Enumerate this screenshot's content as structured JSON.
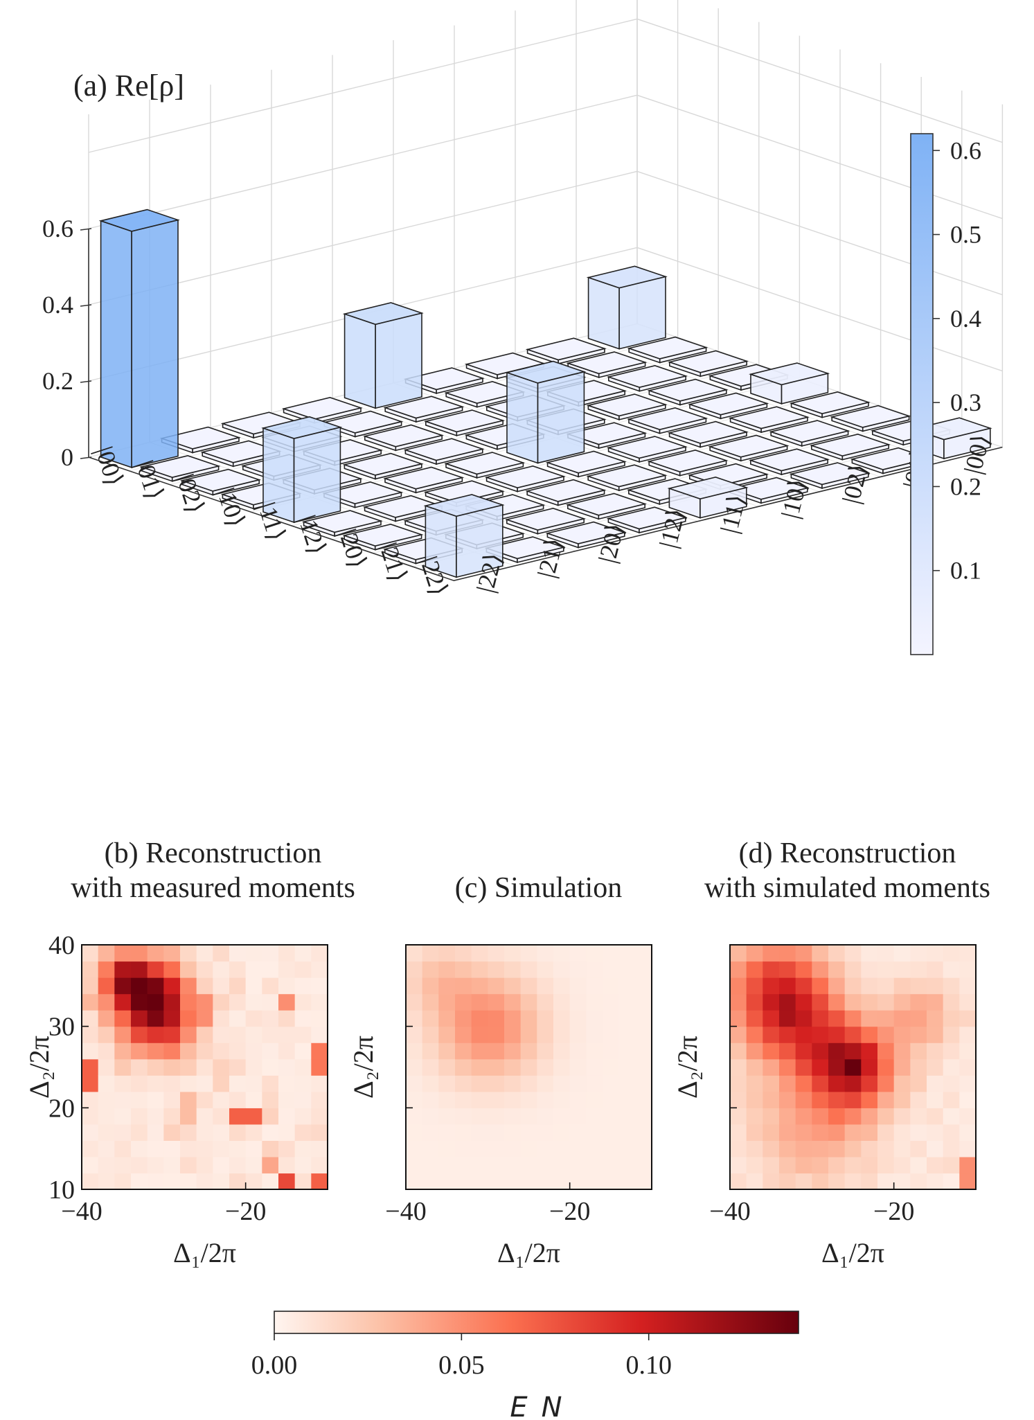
{
  "chart_data": [
    {
      "panel": "(a)",
      "type": "bar3d",
      "title": "(a) Re[ρ]",
      "states": [
        "|00⟩",
        "|01⟩",
        "|02⟩",
        "|10⟩",
        "|11⟩",
        "|12⟩",
        "|20⟩",
        "|21⟩",
        "|22⟩"
      ],
      "zlim": [
        0,
        0.6
      ],
      "zticks": [
        "0",
        "0.2",
        "0.4",
        "0.6"
      ],
      "colorbar": {
        "range": [
          0,
          0.62
        ],
        "ticks": [
          "0.1",
          "0.2",
          "0.3",
          "0.4",
          "0.5",
          "0.6"
        ],
        "colors": [
          "#f4f4ff",
          "#7fb2f5"
        ]
      },
      "values": [
        [
          0.62,
          0.01,
          0.01,
          0.01,
          0.22,
          0.01,
          0.01,
          0.01,
          0.16
        ],
        [
          0.01,
          0.01,
          0.01,
          0.01,
          0.01,
          0.01,
          0.01,
          0.01,
          0.01
        ],
        [
          0.01,
          0.01,
          0.01,
          0.01,
          0.01,
          0.01,
          0.01,
          0.01,
          0.01
        ],
        [
          0.01,
          0.01,
          0.01,
          0.01,
          0.01,
          0.01,
          0.01,
          0.01,
          0.01
        ],
        [
          0.22,
          0.01,
          0.01,
          0.01,
          0.21,
          0.01,
          0.01,
          0.01,
          0.05
        ],
        [
          0.01,
          0.01,
          0.01,
          0.01,
          0.01,
          0.01,
          0.01,
          0.01,
          0.01
        ],
        [
          0.01,
          0.01,
          0.01,
          0.01,
          0.01,
          0.01,
          0.01,
          0.01,
          0.01
        ],
        [
          0.01,
          0.01,
          0.01,
          0.01,
          0.01,
          0.01,
          0.01,
          0.01,
          0.01
        ],
        [
          0.16,
          0.01,
          0.01,
          0.01,
          0.05,
          0.01,
          0.01,
          0.01,
          0.05
        ]
      ]
    },
    {
      "panel": "(b)",
      "type": "heatmap",
      "title": [
        "(b) Reconstruction",
        "with measured moments"
      ],
      "xlabel": "Δ₁/2π",
      "ylabel": "Δ₂/2π",
      "xlim": [
        -40,
        -10
      ],
      "ylim": [
        10,
        40
      ],
      "xticks": [
        "−40",
        "−20"
      ],
      "yticks": [
        "10",
        "20",
        "30",
        "40"
      ],
      "grid_size": 15,
      "peaks": [
        {
          "x": -32,
          "y": 34,
          "w": 3.2,
          "v": 0.11
        },
        {
          "x": -30,
          "y": 30,
          "w": 3,
          "v": 0.06
        },
        {
          "x": -35,
          "y": 36,
          "w": 2,
          "v": 0.06
        }
      ],
      "hotspots": [
        {
          "x": -39,
          "y": 24,
          "v": 0.07
        },
        {
          "x": -11,
          "y": 26,
          "v": 0.06
        },
        {
          "x": -20,
          "y": 19,
          "v": 0.07
        },
        {
          "x": -15,
          "y": 11,
          "v": 0.08
        },
        {
          "x": -11,
          "y": 11,
          "v": 0.07
        },
        {
          "x": -15,
          "y": 33,
          "v": 0.05
        },
        {
          "x": -25,
          "y": 32,
          "v": 0.05
        },
        {
          "x": -17,
          "y": 13,
          "v": 0.04
        },
        {
          "x": -27,
          "y": 20,
          "v": 0.03
        },
        {
          "x": -23,
          "y": 25,
          "v": 0.02
        },
        {
          "x": -29,
          "y": 17,
          "v": 0.02
        }
      ]
    },
    {
      "panel": "(c)",
      "type": "heatmap",
      "title": [
        "(c) Simulation"
      ],
      "xlabel": "Δ₁/2π",
      "ylabel": "Δ₂/2π",
      "xlim": [
        -40,
        -10
      ],
      "ylim": [
        10,
        40
      ],
      "xticks": [
        "−40",
        "−20"
      ],
      "yticks": [],
      "grid_size": 15,
      "peaks": [
        {
          "x": -30,
          "y": 30,
          "w": 4.5,
          "v": 0.05
        },
        {
          "x": -36,
          "y": 36,
          "w": 3,
          "v": 0.02
        }
      ],
      "hotspots": []
    },
    {
      "panel": "(d)",
      "type": "heatmap",
      "title": [
        "(d) Reconstruction",
        "with simulated moments"
      ],
      "xlabel": "Δ₁/2π",
      "ylabel": "Δ₂/2π",
      "xlim": [
        -40,
        -10
      ],
      "ylim": [
        10,
        40
      ],
      "xticks": [
        "−40",
        "−20"
      ],
      "yticks": [],
      "grid_size": 15,
      "peaks": [
        {
          "x": -34,
          "y": 34,
          "w": 4.5,
          "v": 0.085
        },
        {
          "x": -25,
          "y": 25,
          "w": 3.5,
          "v": 0.1
        },
        {
          "x": -31,
          "y": 29,
          "w": 4,
          "v": 0.04
        },
        {
          "x": -30,
          "y": 18,
          "w": 5,
          "v": 0.035
        },
        {
          "x": -17,
          "y": 31,
          "w": 3,
          "v": 0.035
        }
      ],
      "hotspots": [
        {
          "x": -25,
          "y": 25,
          "v": 0.14
        },
        {
          "x": -11,
          "y": 12,
          "v": 0.05
        },
        {
          "x": -33,
          "y": 35,
          "v": 0.1
        }
      ]
    }
  ],
  "colorbar_en": {
    "label": "E_N",
    "range": [
      0,
      0.14
    ],
    "ticks": [
      0.0,
      0.05,
      0.1
    ],
    "tick_labels": [
      "0.00",
      "0.05",
      "0.10"
    ]
  }
}
